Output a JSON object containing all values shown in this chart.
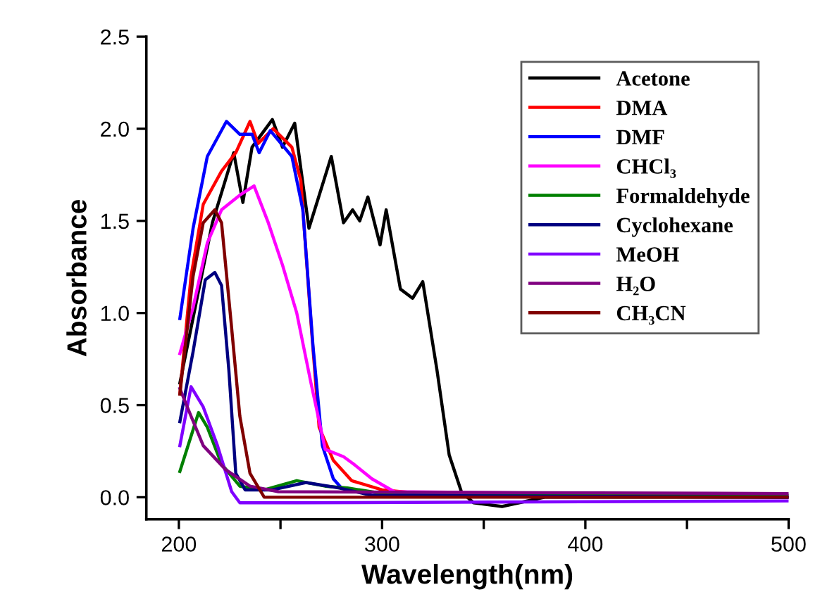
{
  "chart_data": {
    "type": "line",
    "xlabel": "Wavelength(nm)",
    "ylabel": "Absorbance",
    "xlim": [
      184,
      500
    ],
    "ylim": [
      -0.12,
      2.5
    ],
    "xticks": [
      200,
      {
        "value": 250,
        "label": null
      },
      300,
      {
        "value": 350,
        "label": null
      },
      400,
      {
        "value": 450,
        "label": null
      },
      500
    ],
    "yticks": [
      {
        "value": 0,
        "label": "0.0"
      },
      {
        "value": 0.5,
        "label": "0.5"
      },
      {
        "value": 1,
        "label": "1.0"
      },
      {
        "value": 1.5,
        "label": "1.5"
      },
      {
        "value": 2,
        "label": "2.0"
      },
      {
        "value": 2.5,
        "label": "2.5"
      }
    ],
    "grid": false,
    "legend": "top right",
    "marker": "none",
    "line_style": "solid",
    "series": [
      {
        "name": "Acetone",
        "color": "#000000",
        "x": [
          200.5,
          216.5,
          227,
          231.5,
          236,
          246,
          251,
          257,
          264,
          275,
          281,
          285.5,
          289,
          293,
          299,
          302,
          309,
          315,
          320,
          327,
          333,
          339,
          345,
          359,
          380,
          500
        ],
        "values": [
          0.62,
          1.49,
          1.87,
          1.6,
          1.9,
          2.05,
          1.9,
          2.03,
          1.46,
          1.85,
          1.49,
          1.56,
          1.5,
          1.63,
          1.37,
          1.56,
          1.13,
          1.08,
          1.17,
          0.69,
          0.23,
          0.03,
          -0.03,
          -0.05,
          0.0,
          0.0
        ]
      },
      {
        "name": "DMA",
        "color": "#ff0000",
        "x": [
          200.5,
          206,
          212,
          221,
          228,
          235,
          239,
          246.4,
          255.6,
          260,
          265,
          269,
          276,
          285,
          300,
          320,
          500
        ],
        "values": [
          0.56,
          1.2,
          1.59,
          1.77,
          1.87,
          2.04,
          1.92,
          2.0,
          1.9,
          1.72,
          0.95,
          0.38,
          0.2,
          0.09,
          0.04,
          0.02,
          0.0
        ]
      },
      {
        "name": "DMF",
        "color": "#0000ff",
        "x": [
          200.5,
          207,
          214,
          223.4,
          230,
          236,
          239.5,
          245,
          255.6,
          261,
          266,
          270.6,
          276,
          280,
          300,
          500
        ],
        "values": [
          0.97,
          1.46,
          1.85,
          2.04,
          1.97,
          1.97,
          1.87,
          1.99,
          1.85,
          1.56,
          0.82,
          0.28,
          0.1,
          0.05,
          0.02,
          0.0
        ]
      },
      {
        "name": "CHCl₃",
        "color": "#ff00ff",
        "x": [
          200.5,
          207,
          214,
          221,
          230,
          237,
          244,
          251,
          258,
          265,
          272,
          281,
          286,
          295,
          306,
          500
        ],
        "values": [
          0.78,
          1.03,
          1.38,
          1.56,
          1.64,
          1.69,
          1.49,
          1.26,
          1.0,
          0.62,
          0.26,
          0.22,
          0.18,
          0.1,
          0.03,
          0.01
        ]
      },
      {
        "name": "Formaldehyde",
        "color": "#008000",
        "x": [
          200.5,
          209.7,
          214,
          221,
          230,
          242,
          258,
          272,
          283,
          306,
          500
        ],
        "values": [
          0.14,
          0.46,
          0.38,
          0.18,
          0.06,
          0.04,
          0.09,
          0.06,
          0.05,
          0.01,
          0.01
        ]
      },
      {
        "name": "Cyclohexane",
        "color": "#000080",
        "x": [
          200.5,
          207,
          213,
          217.7,
          221,
          224.6,
          228,
          232.6,
          246,
          262.5,
          279,
          295,
          500
        ],
        "values": [
          0.41,
          0.79,
          1.18,
          1.22,
          1.15,
          0.69,
          0.13,
          0.04,
          0.04,
          0.08,
          0.05,
          0.01,
          0.0
        ]
      },
      {
        "name": "MeOH",
        "color": "#8000ff",
        "x": [
          200.5,
          206,
          212,
          219,
          226,
          230,
          258,
          500
        ],
        "values": [
          0.28,
          0.6,
          0.49,
          0.28,
          0.03,
          -0.03,
          -0.03,
          -0.02
        ]
      },
      {
        "name": "H₂O",
        "color": "#800080",
        "x": [
          200.5,
          206,
          212,
          223,
          235,
          249,
          500
        ],
        "values": [
          0.59,
          0.44,
          0.28,
          0.15,
          0.06,
          0.03,
          0.02
        ]
      },
      {
        "name": "CH₃CN",
        "color": "#800000",
        "x": [
          200.5,
          207,
          212,
          217.7,
          221,
          225.7,
          230,
          235,
          242,
          500
        ],
        "values": [
          0.56,
          1.2,
          1.49,
          1.56,
          1.49,
          0.95,
          0.44,
          0.13,
          0.0,
          0.0
        ]
      }
    ]
  }
}
